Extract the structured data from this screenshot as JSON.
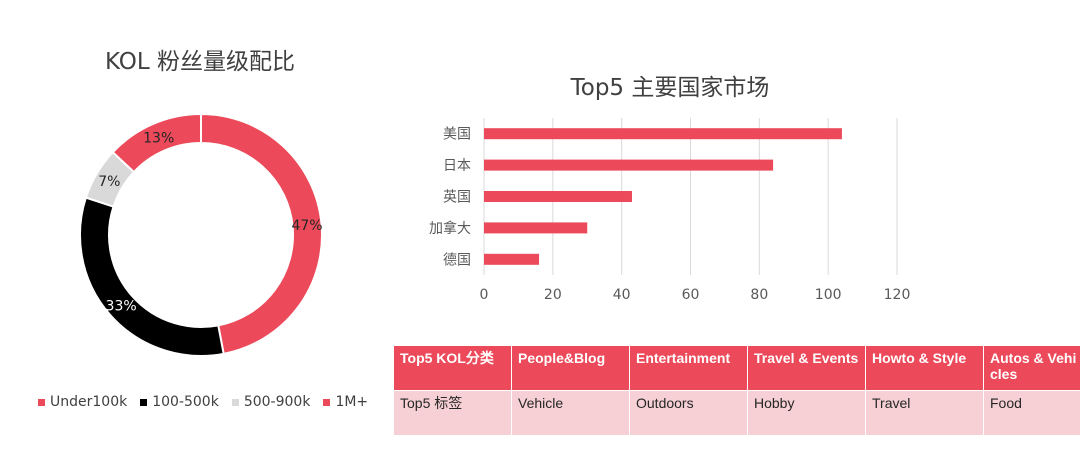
{
  "chart_data": [
    {
      "type": "pie",
      "title": "KOL 粉丝量级配比",
      "donut": true,
      "categories": [
        "Under100k",
        "100-500k",
        "500-900k",
        "1M+"
      ],
      "values": [
        47,
        33,
        7,
        13
      ],
      "labels": [
        "47%",
        "33%",
        "7%",
        "13%"
      ],
      "colors": [
        "#ec4a5a",
        "#000000",
        "#d9d9d9",
        "#ec4a5a"
      ],
      "legend": "bottom"
    },
    {
      "type": "bar",
      "orientation": "horizontal",
      "title": "Top5 主要国家市场",
      "categories": [
        "美国",
        "日本",
        "英国",
        "加拿大",
        "德国"
      ],
      "values": [
        104,
        84,
        43,
        30,
        16
      ],
      "xlim": [
        0,
        120
      ],
      "xticks": [
        "0",
        "20",
        "40",
        "60",
        "80",
        "100",
        "120"
      ],
      "color": "#ec4a5a",
      "grid": true
    }
  ],
  "table": {
    "header": [
      "Top5 KOL分类",
      "People&Blog",
      "Entertainment",
      "Travel & Events",
      "Howto & Style",
      "Autos & Vehicles"
    ],
    "row": [
      "Top5 标签",
      "Vehicle",
      "Outdoors",
      "Hobby",
      "Travel",
      "Food"
    ]
  }
}
